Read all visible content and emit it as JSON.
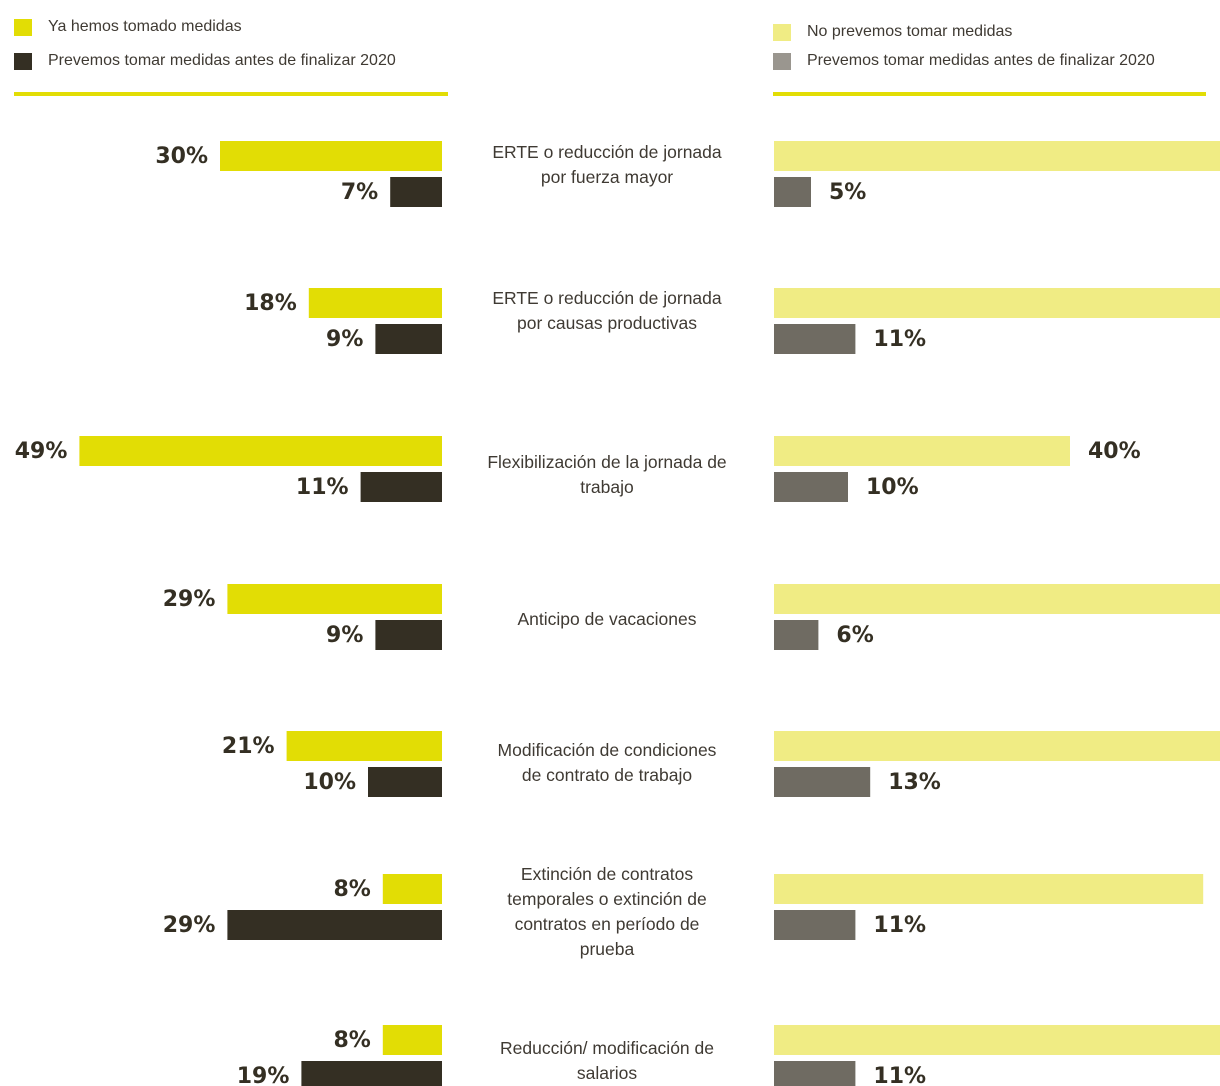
{
  "legend": {
    "left": [
      {
        "label": "Ya hemos tomado medidas",
        "color": "#e2dd05"
      },
      {
        "label": "Prevemos tomar medidas antes de finalizar 2020",
        "color": "#342f23"
      }
    ],
    "right": [
      {
        "label": "No prevemos tomar medidas",
        "color": "#f0ec84"
      },
      {
        "label": "Prevemos tomar medidas antes de finalizar 2020",
        "color": "#9a968f"
      }
    ]
  },
  "colors": {
    "rule": "#e2dd05",
    "label_text": "#342f23",
    "right_second_bar": "#6f6b62"
  },
  "chart_data": {
    "type": "bar",
    "categories": [
      "ERTE o reducción de jornada por fuerza mayor",
      "ERTE o reducción de jornada por causas productivas",
      "Flexibilización de la jornada de trabajo",
      "Anticipo de vacaciones",
      "Modificación de condiciones de contrato de trabajo",
      "Extinción de contratos temporales o extinción de contratos en período de prueba",
      "Reducción/ modificación de salarios"
    ],
    "left_panel": {
      "series": [
        {
          "name": "Ya hemos tomado medidas",
          "values": [
            30,
            18,
            49,
            29,
            21,
            8,
            8
          ]
        },
        {
          "name": "Prevemos tomar medidas antes de finalizar 2020",
          "values": [
            7,
            9,
            11,
            9,
            10,
            29,
            19
          ]
        }
      ]
    },
    "right_panel": {
      "series": [
        {
          "name": "No prevemos tomar medidas",
          "values": [
            63,
            68,
            40,
            62,
            64,
            58,
            68
          ]
        },
        {
          "name": "Prevemos tomar medidas antes de finalizar 2020",
          "values": [
            5,
            11,
            10,
            6,
            13,
            11,
            11
          ]
        }
      ]
    },
    "value_suffix": "%",
    "orientation": "horizontal",
    "legend_position": "top"
  }
}
